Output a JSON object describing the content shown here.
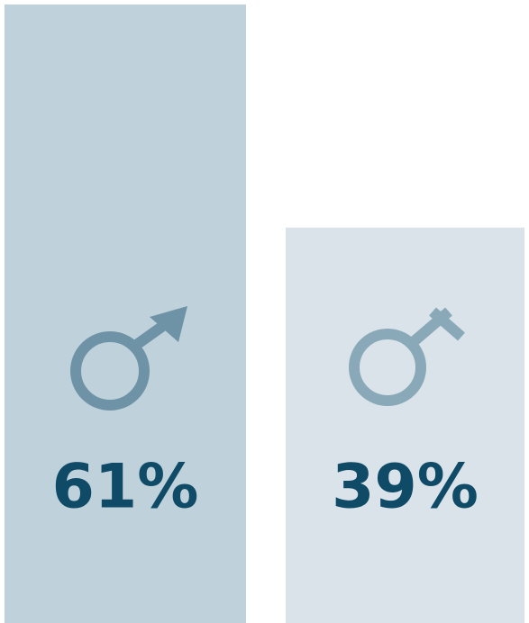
{
  "chart_data": {
    "type": "bar",
    "categories": [
      null,
      null
    ],
    "values": [
      61,
      39
    ],
    "value_labels": [
      "61%",
      "39%"
    ],
    "colors": [
      "#bfd1da",
      "#d9e3e9"
    ]
  }
}
